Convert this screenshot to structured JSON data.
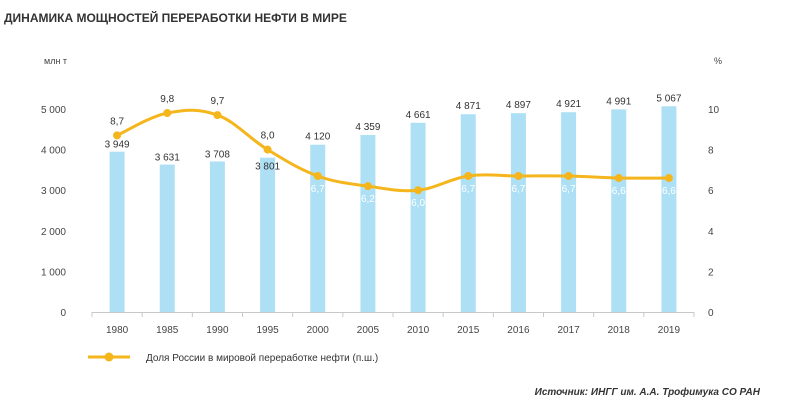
{
  "page": {
    "title": "ДИНАМИКА МОЩНОСТЕЙ ПЕРЕРАБОТКИ НЕФТИ В МИРЕ",
    "source": "Источник: ИНГГ им. А.А. Трофимука СО РАН"
  },
  "chart_data": {
    "type": "bar+line",
    "categories": [
      "1980",
      "1985",
      "1990",
      "1995",
      "2000",
      "2005",
      "2010",
      "2015",
      "2016",
      "2017",
      "2018",
      "2019"
    ],
    "y_left": {
      "unit": "млн т",
      "ticks": [
        "0",
        "1 000",
        "2 000",
        "3 000",
        "4 000",
        "5 000"
      ],
      "range": [
        0,
        5000
      ]
    },
    "y_right": {
      "unit": "%",
      "ticks": [
        "0",
        "2",
        "4",
        "6",
        "8",
        "10"
      ],
      "range": [
        0,
        10
      ]
    },
    "bars": {
      "values": [
        3949,
        3631,
        3708,
        3801,
        4120,
        4359,
        4661,
        4871,
        4897,
        4921,
        4991,
        5067
      ],
      "labels": [
        "3 949",
        "3 631",
        "3 708",
        "3 801",
        "4 120",
        "4 359",
        "4 661",
        "4 871",
        "4 897",
        "4 921",
        "4 991",
        "5 067"
      ],
      "color": "#aee0f5"
    },
    "line": {
      "name": "Доля России в мировой переработке нефти (п.ш.)",
      "values": [
        8.7,
        9.8,
        9.7,
        8.0,
        6.7,
        6.2,
        6.0,
        6.7,
        6.7,
        6.7,
        6.6,
        6.6
      ],
      "labels": [
        "8,7",
        "9,8",
        "9,7",
        "8,0",
        "6,7",
        "6,2",
        "6,0",
        "6,7",
        "6,7",
        "6,7",
        "6,6",
        "6,6"
      ],
      "color": "#f5b51c"
    },
    "grid": false,
    "legend_position": "bottom-left"
  }
}
